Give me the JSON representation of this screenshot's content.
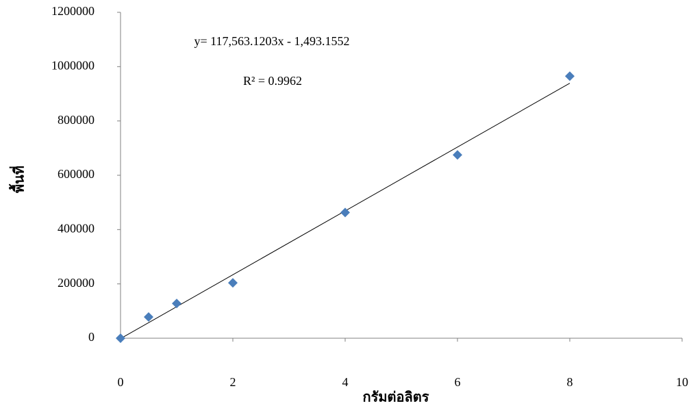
{
  "chart_data": {
    "type": "scatter",
    "x_label": "กรัมต่อลิตร",
    "y_label": "พื้นที่",
    "x": [
      0,
      0.5,
      1,
      2,
      4,
      6,
      8
    ],
    "series": [
      {
        "color": "#4a7ebb",
        "values": [
          0,
          78000,
          128000,
          204000,
          463000,
          675000,
          965000
        ]
      }
    ],
    "xlim": [
      0,
      10
    ],
    "xticks": [
      0,
      2,
      4,
      6,
      8,
      10
    ],
    "ylim": [
      0,
      1200000
    ],
    "yticks": [
      0,
      200000,
      400000,
      600000,
      800000,
      1000000,
      1200000
    ],
    "grid": false,
    "trendline": {
      "slope": 117563.1203,
      "intercept": -1493.1552,
      "color": "#000000",
      "equation": "y= 117,563.1203x - 1,493.1552",
      "r_squared": "R² = 0.9962"
    }
  }
}
